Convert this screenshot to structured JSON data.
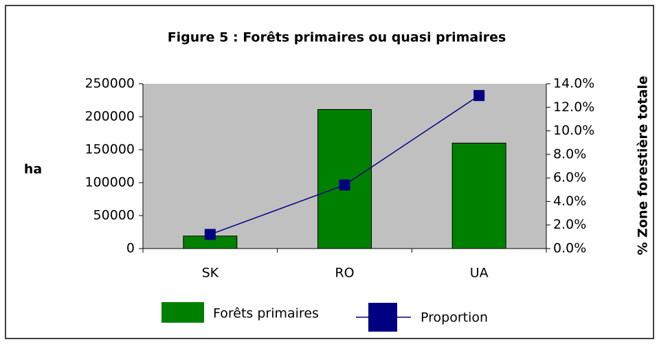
{
  "chart_data": {
    "type": "bar",
    "title": "Figure 5 :  Forêts primaires ou quasi primaires",
    "y_label": "ha",
    "y2_label": "% Zone forestière totale",
    "categories": [
      "SK",
      "RO",
      "UA"
    ],
    "series": [
      {
        "name": "Forêts primaires",
        "type": "bar",
        "color": "#008000",
        "values": [
          19000,
          211000,
          160000
        ]
      },
      {
        "name": "Proportion",
        "type": "line",
        "color": "#000080",
        "axis": "y2",
        "values": [
          1.2,
          5.4,
          13.0
        ]
      }
    ],
    "ylim": [
      0,
      250000
    ],
    "yticks": [
      0,
      50000,
      100000,
      150000,
      200000,
      250000
    ],
    "y2lim": [
      0,
      14
    ],
    "y2ticks": [
      {
        "value": 0,
        "label": "0.0%"
      },
      {
        "value": 2,
        "label": "2.0%"
      },
      {
        "value": 4,
        "label": "4.0%"
      },
      {
        "value": 6,
        "label": "6.0%"
      },
      {
        "value": 8,
        "label": "8.0%"
      },
      {
        "value": 10,
        "label": "10.0%"
      },
      {
        "value": 12,
        "label": "12.0%"
      },
      {
        "value": 14,
        "label": "14.0%"
      }
    ],
    "plot_background": "#c0c0c0"
  }
}
